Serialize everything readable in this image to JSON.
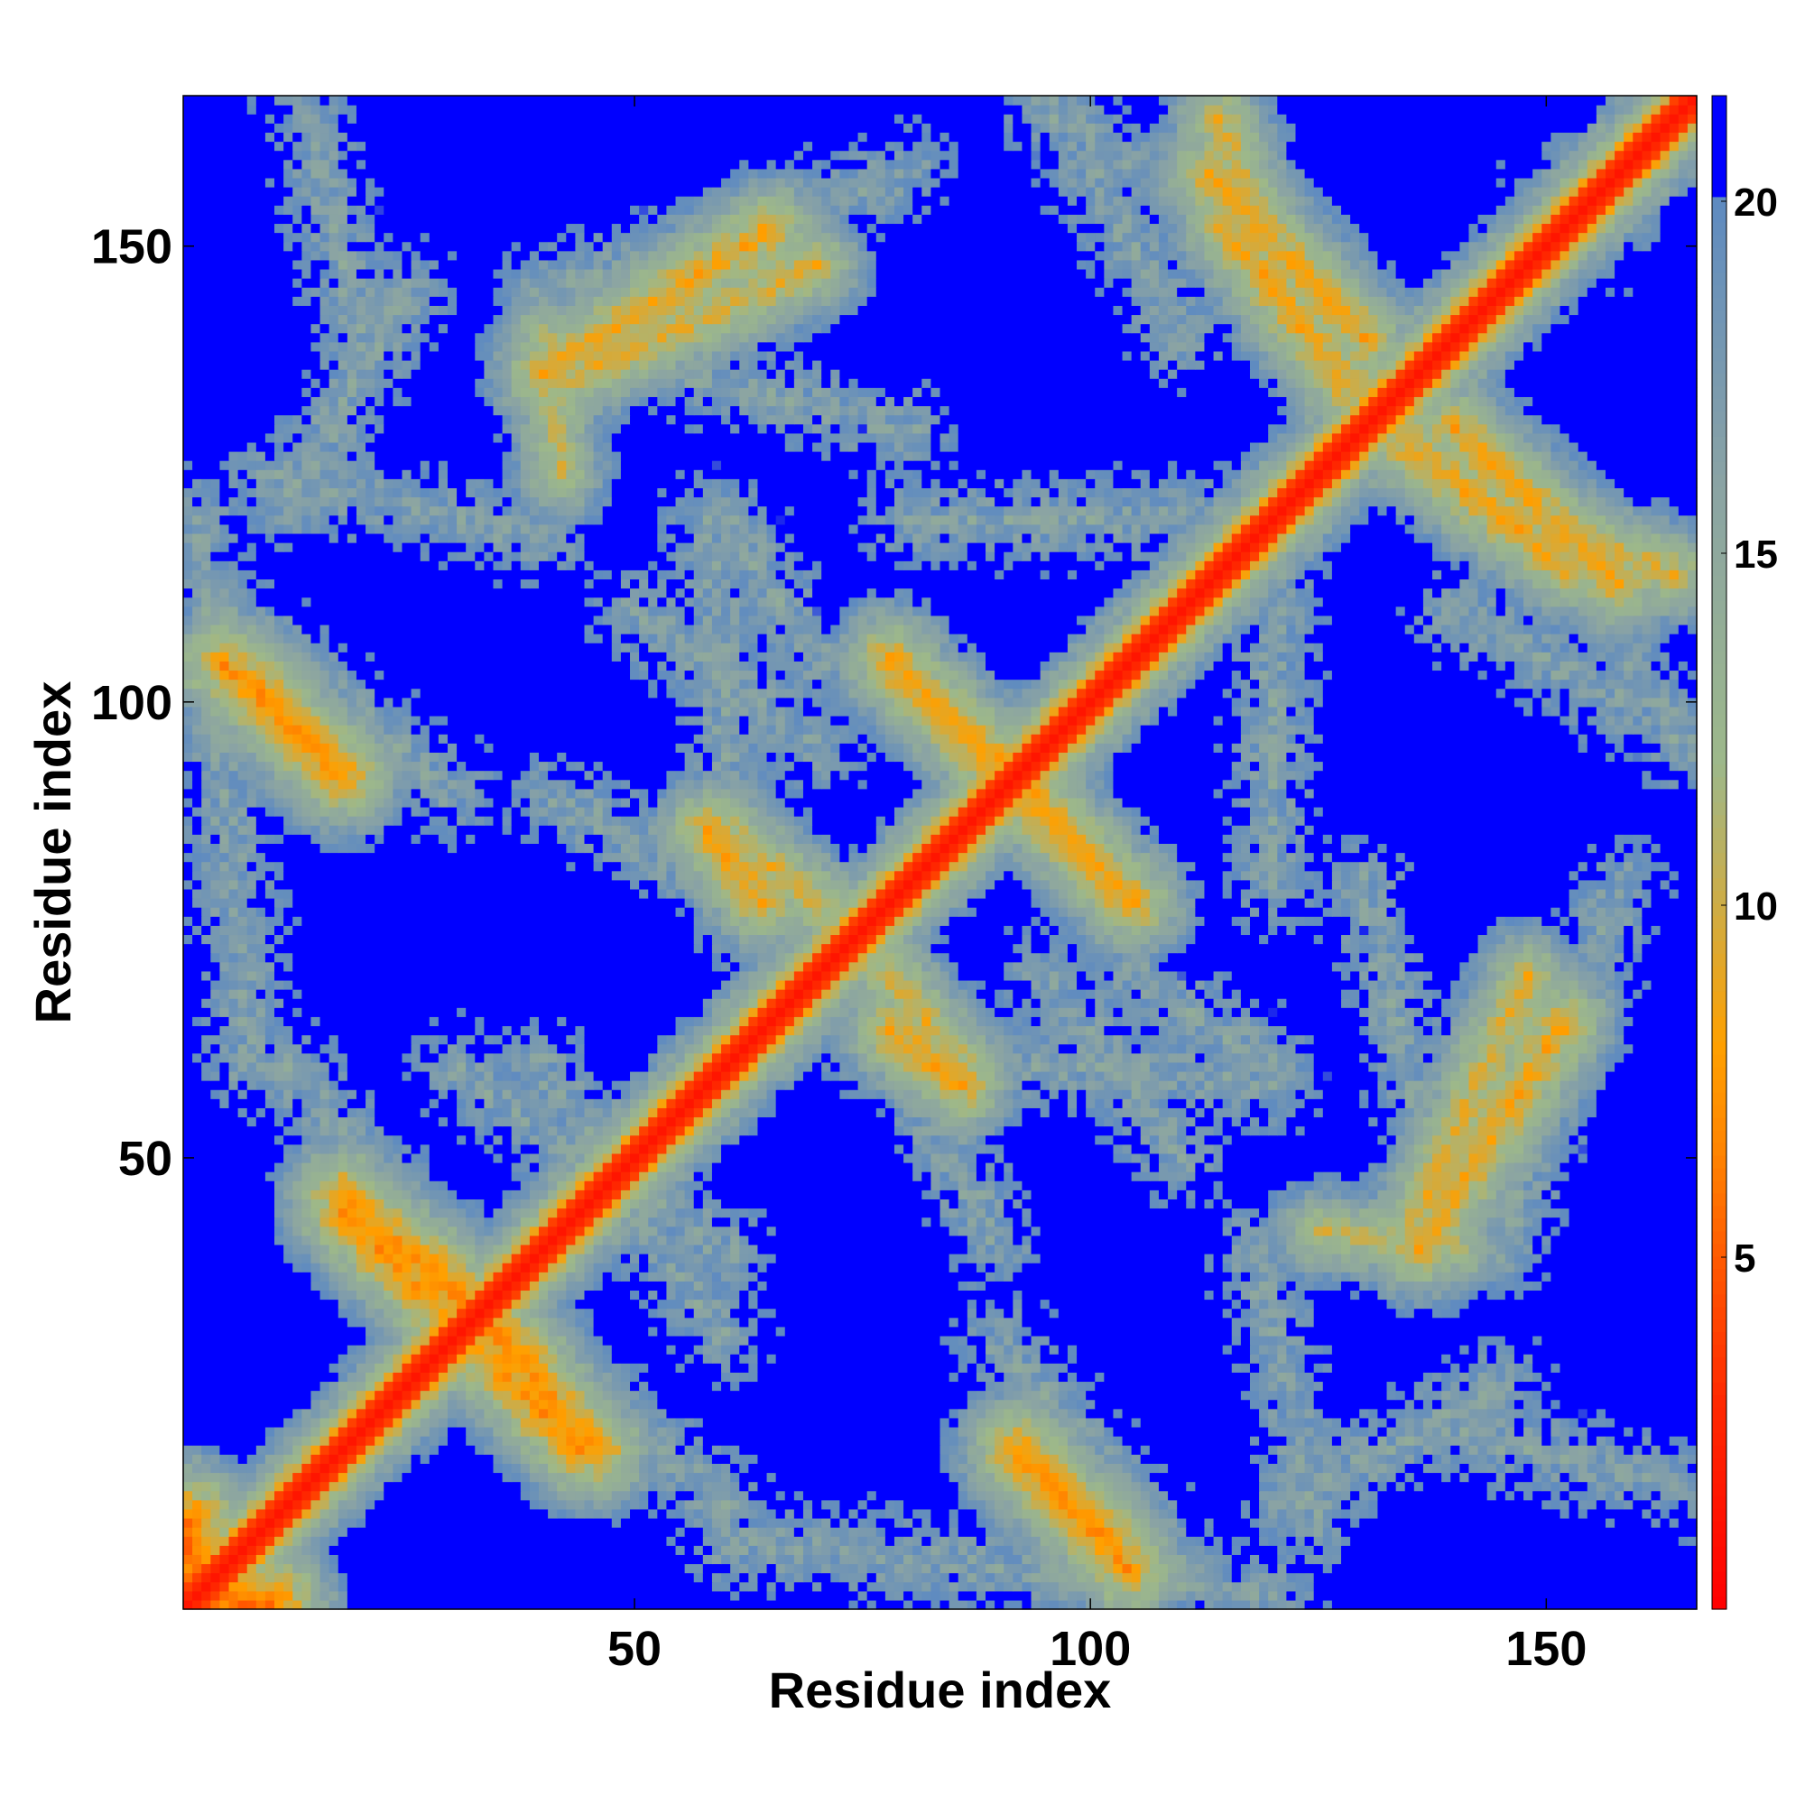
{
  "chart_data": {
    "type": "heatmap",
    "title": "",
    "xlabel": "Residue index",
    "ylabel": "Residue index",
    "n_residues": 166,
    "xlim": [
      1,
      166
    ],
    "ylim": [
      1,
      166
    ],
    "x_ticks": [
      50,
      100,
      150
    ],
    "y_ticks": [
      50,
      100,
      150
    ],
    "colorbar": {
      "min": 0,
      "max": 21.5,
      "ticks": [
        5,
        10,
        15,
        20
      ],
      "saturate_above": 20,
      "colors": [
        "#ff0000",
        "#ff2a00",
        "#ff5a00",
        "#ff8400",
        "#ffa000",
        "#9db88a",
        "#8aa3a4",
        "#5f8bc0",
        "#0000ff"
      ],
      "color_stops": [
        0,
        3,
        5,
        6.5,
        8,
        12,
        16,
        20,
        20.01
      ]
    },
    "diagonal_band": {
      "value": 1.5,
      "halfwidth_residues": 2
    },
    "contact_bands": [
      {
        "from": [
          2,
          2
        ],
        "to": [
          10,
          1
        ],
        "min_value": 4
      },
      {
        "from": [
          18,
          46
        ],
        "to": [
          38,
          28
        ],
        "min_value": 6
      },
      {
        "from": [
          30,
          32
        ],
        "to": [
          44,
          18
        ],
        "min_value": 6
      },
      {
        "from": [
          5,
          104
        ],
        "to": [
          18,
          92
        ],
        "min_value": 6
      },
      {
        "from": [
          40,
          136
        ],
        "to": [
          65,
          152
        ],
        "min_value": 7
      },
      {
        "from": [
          60,
          86
        ],
        "to": [
          70,
          78
        ],
        "min_value": 8
      },
      {
        "from": [
          78,
          104
        ],
        "to": [
          92,
          92
        ],
        "min_value": 7
      },
      {
        "from": [
          92,
          90
        ],
        "to": [
          105,
          78
        ],
        "min_value": 7
      },
      {
        "from": [
          78,
          64
        ],
        "to": [
          86,
          58
        ],
        "min_value": 7
      },
      {
        "from": [
          92,
          18
        ],
        "to": [
          102,
          8
        ],
        "min_value": 6
      },
      {
        "from": [
          113,
          158
        ],
        "to": [
          130,
          140
        ],
        "min_value": 7
      },
      {
        "from": [
          135,
          128
        ],
        "to": [
          152,
          115
        ],
        "min_value": 7
      },
      {
        "from": [
          135,
          42
        ],
        "to": [
          148,
          70
        ],
        "min_value": 8
      },
      {
        "from": [
          114,
          164
        ],
        "to": [
          118,
          154
        ],
        "min_value": 8
      },
      {
        "from": [
          125,
          42
        ],
        "to": [
          140,
          40
        ],
        "min_value": 9
      }
    ],
    "shells": [
      {
        "from": [
          12,
          122
        ],
        "to": [
          25,
          145
        ],
        "min_value": 14
      },
      {
        "from": [
          2,
          120
        ],
        "to": [
          8,
          60
        ],
        "min_value": 14
      },
      {
        "from": [
          12,
          60
        ],
        "to": [
          28,
          40
        ],
        "min_value": 14
      },
      {
        "from": [
          40,
          145
        ],
        "to": [
          80,
          158
        ],
        "min_value": 14
      },
      {
        "from": [
          58,
          120
        ],
        "to": [
          62,
          75
        ],
        "min_value": 14
      },
      {
        "from": [
          40,
          60
        ],
        "to": [
          60,
          30
        ],
        "min_value": 14
      },
      {
        "from": [
          80,
          120
        ],
        "to": [
          115,
          120
        ],
        "min_value": 14
      },
      {
        "from": [
          80,
          60
        ],
        "to": [
          90,
          40
        ],
        "min_value": 14
      },
      {
        "from": [
          90,
          30
        ],
        "to": [
          110,
          5
        ],
        "min_value": 14
      },
      {
        "from": [
          105,
          70
        ],
        "to": [
          120,
          60
        ],
        "min_value": 14
      },
      {
        "from": [
          118,
          40
        ],
        "to": [
          125,
          10
        ],
        "min_value": 14
      },
      {
        "from": [
          130,
          80
        ],
        "to": [
          140,
          40
        ],
        "min_value": 14
      },
      {
        "from": [
          140,
          20
        ],
        "to": [
          165,
          14
        ],
        "min_value": 14
      },
      {
        "from": [
          150,
          118
        ],
        "to": [
          165,
          95
        ],
        "min_value": 14
      },
      {
        "from": [
          150,
          155
        ],
        "to": [
          165,
          165
        ],
        "min_value": 14
      },
      {
        "from": [
          100,
          158
        ],
        "to": [
          110,
          140
        ],
        "min_value": 14
      },
      {
        "from": [
          50,
          110
        ],
        "to": [
          70,
          95
        ],
        "min_value": 14
      }
    ],
    "grid": false,
    "legend": "colorbar-right"
  }
}
